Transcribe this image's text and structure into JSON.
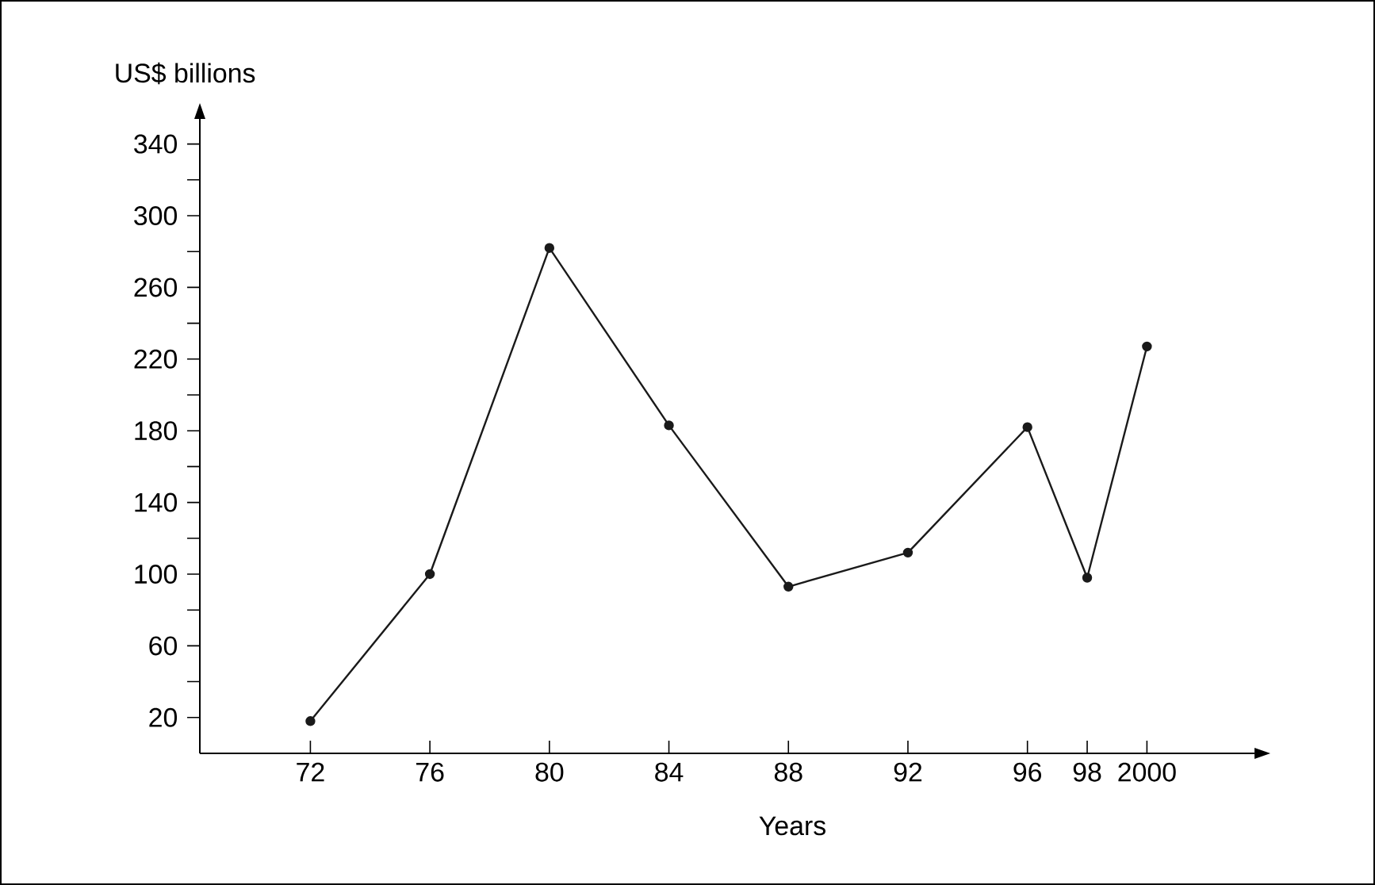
{
  "chart_data": {
    "type": "line",
    "xlabel": "Years",
    "ylabel": "US$ billions",
    "x": [
      1972,
      1976,
      1980,
      1984,
      1988,
      1992,
      1996,
      1998,
      2000
    ],
    "values": [
      18,
      100,
      282,
      183,
      93,
      112,
      182,
      98,
      227
    ],
    "color": "#1a1a1a",
    "marker": "circle",
    "line_style": "solid",
    "grid": false,
    "xlim": [
      1968.3,
      2003.6
    ],
    "ylim": [
      0,
      354
    ],
    "xticks": [
      {
        "value": 1972,
        "label": "72"
      },
      {
        "value": 1976,
        "label": "76"
      },
      {
        "value": 1980,
        "label": "80"
      },
      {
        "value": 1984,
        "label": "84"
      },
      {
        "value": 1988,
        "label": "88"
      },
      {
        "value": 1992,
        "label": "92"
      },
      {
        "value": 1996,
        "label": "96"
      },
      {
        "value": 1998,
        "label": "98"
      },
      2000
    ],
    "yticks": [
      20,
      {
        "value": 40,
        "label": null
      },
      60,
      {
        "value": 80,
        "label": null
      },
      100,
      {
        "value": 120,
        "label": null
      },
      140,
      {
        "value": 160,
        "label": null
      },
      180,
      {
        "value": 200,
        "label": null
      },
      220,
      {
        "value": 240,
        "label": null
      },
      260,
      {
        "value": 280,
        "label": null
      },
      300,
      {
        "value": 320,
        "label": null
      },
      340
    ]
  }
}
